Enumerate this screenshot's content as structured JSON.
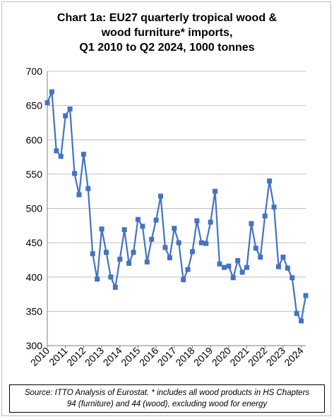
{
  "chart_data": {
    "type": "line",
    "title_lines": [
      "Chart 1a: EU27 quarterly tropical wood &",
      "wood furniture* imports,",
      "Q1 2010 to Q2 2024, 1000 tonnes"
    ],
    "source_lines": [
      "Source: ITTO Analysis of Eurostat. * includes all wood products in HS Chapters",
      "94 (furniture) and 44 (wood), excluding wood for energy"
    ],
    "ylim": [
      300,
      700
    ],
    "yticks": [
      "300",
      "350",
      "400",
      "450",
      "500",
      "550",
      "600",
      "650",
      "700"
    ],
    "xticks": [
      "2010",
      "2011",
      "2012",
      "2013",
      "2014",
      "2015",
      "2016",
      "2017",
      "2018",
      "2019",
      "2020",
      "2021",
      "2022",
      "2023",
      "2024"
    ],
    "x_range": [
      "Q1 2010",
      "Q2 2024"
    ],
    "gridlines": "horizontal",
    "line_color": "#4472C4",
    "marker": "square",
    "series": [
      {
        "values": [
          654,
          670,
          584,
          576,
          635,
          645,
          551,
          520,
          579,
          529,
          434,
          397,
          470,
          436,
          400,
          385,
          426,
          469,
          420,
          436,
          484,
          474,
          422,
          455,
          483,
          518,
          443,
          428,
          471,
          450,
          396,
          411,
          437,
          482,
          450,
          449,
          480,
          525,
          419,
          414,
          416,
          399,
          424,
          407,
          414,
          478,
          442,
          429,
          489,
          540,
          502,
          415,
          429,
          413,
          399,
          347,
          336,
          373
        ]
      }
    ]
  }
}
